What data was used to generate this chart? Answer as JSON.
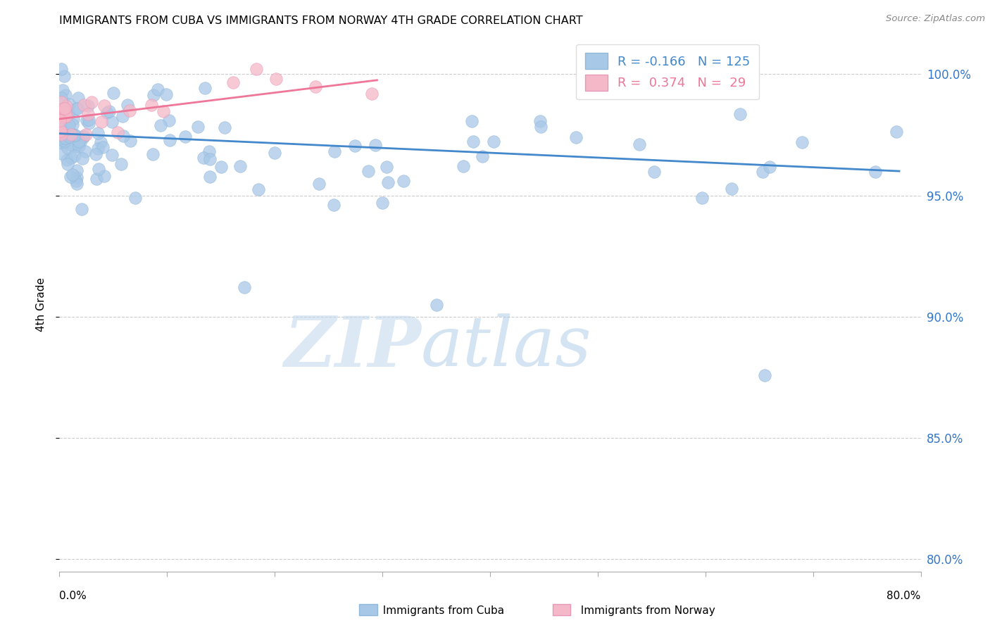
{
  "title": "IMMIGRANTS FROM CUBA VS IMMIGRANTS FROM NORWAY 4TH GRADE CORRELATION CHART",
  "source": "Source: ZipAtlas.com",
  "ylabel": "4th Grade",
  "ytick_labels": [
    "80.0%",
    "85.0%",
    "90.0%",
    "95.0%",
    "100.0%"
  ],
  "ytick_values": [
    0.8,
    0.85,
    0.9,
    0.95,
    1.0
  ],
  "xmin": 0.0,
  "xmax": 0.8,
  "ymin": 0.795,
  "ymax": 1.015,
  "legend_r_cuba": "-0.166",
  "legend_n_cuba": "125",
  "legend_r_norway": "0.374",
  "legend_n_norway": "29",
  "watermark_zip": "ZIP",
  "watermark_atlas": "atlas",
  "color_cuba": "#a8c8e8",
  "color_norway": "#f4b8c8",
  "line_color_cuba": "#4488cc",
  "line_color_norway": "#ee7799",
  "cuba_line_x0": 0.0,
  "cuba_line_x1": 0.78,
  "cuba_line_y0": 0.9755,
  "cuba_line_y1": 0.96,
  "norway_line_x0": 0.0,
  "norway_line_x1": 0.295,
  "norway_line_y0": 0.9815,
  "norway_line_y1": 0.9975
}
